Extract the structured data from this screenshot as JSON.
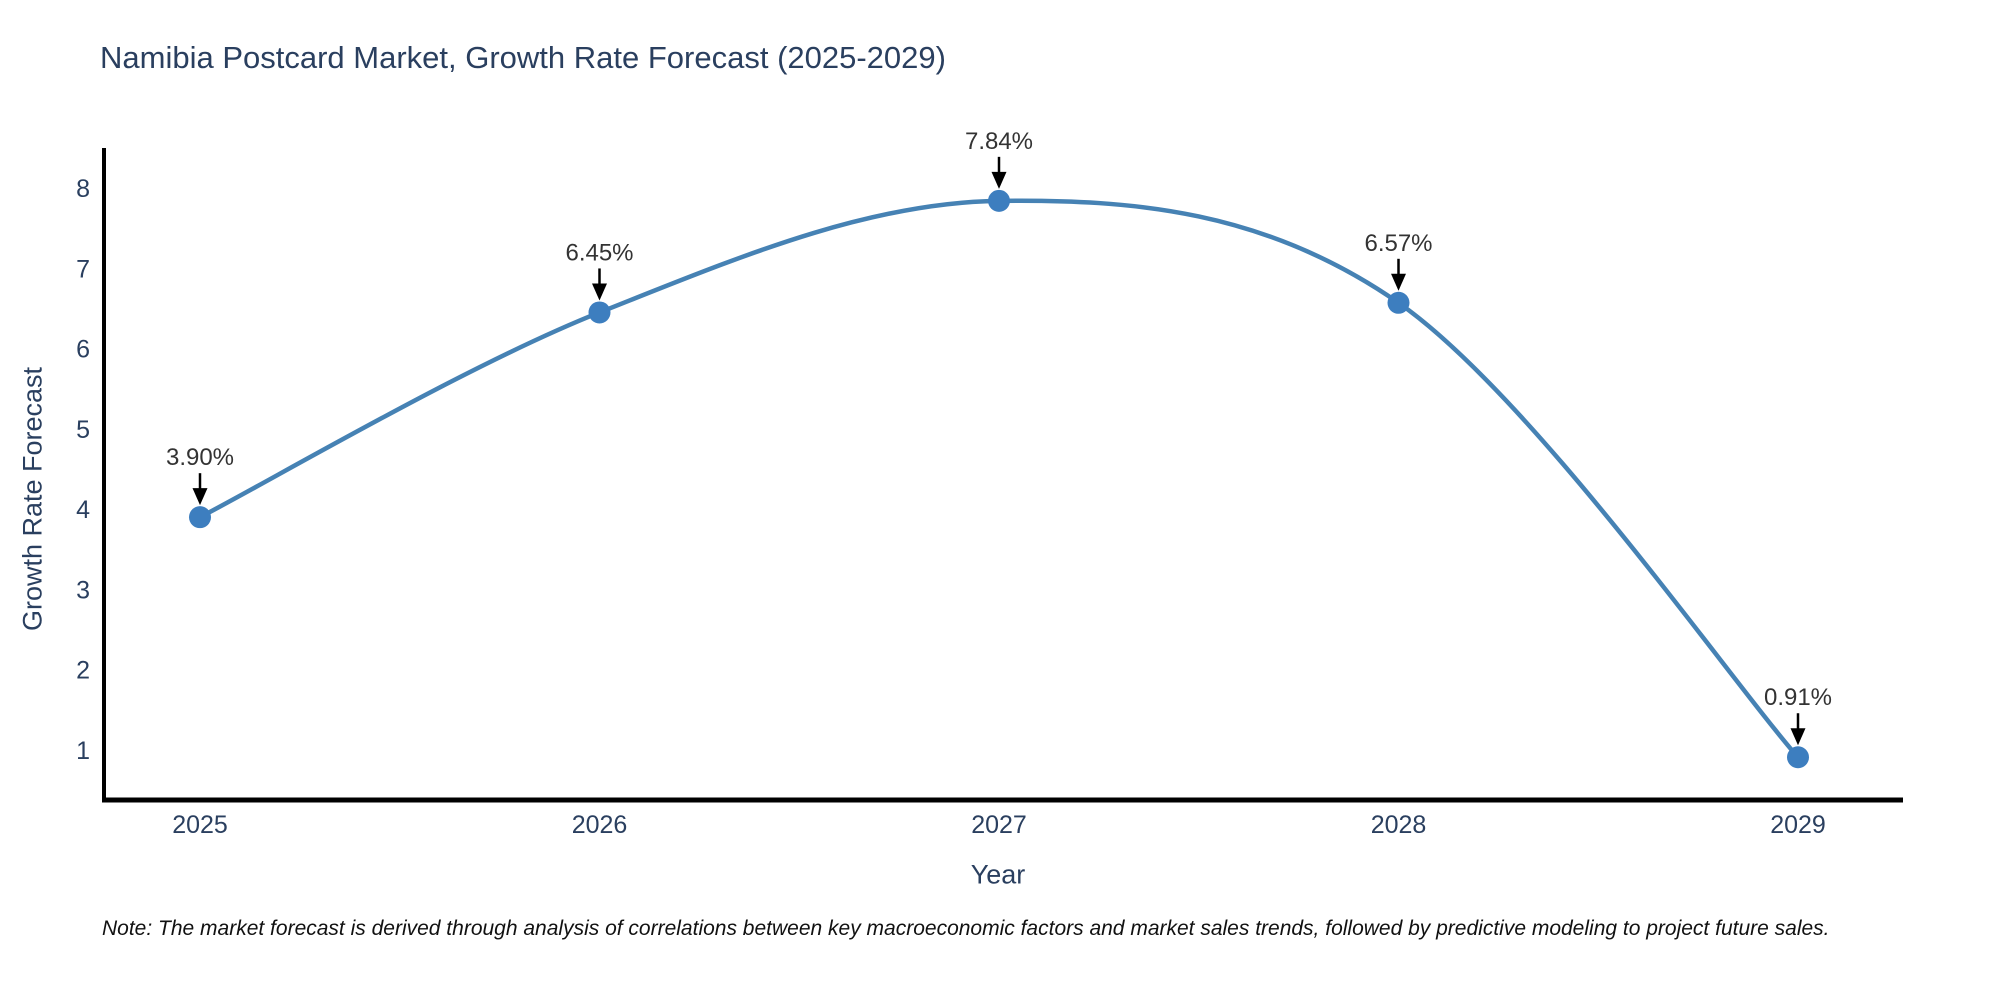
{
  "chart_data": {
    "type": "line",
    "title": "Namibia Postcard Market, Growth Rate Forecast (2025-2029)",
    "xlabel": "Year",
    "ylabel": "Growth Rate Forecast",
    "categories": [
      "2025",
      "2026",
      "2027",
      "2028",
      "2029"
    ],
    "values": [
      3.9,
      6.45,
      7.84,
      6.57,
      0.91
    ],
    "point_labels": [
      "3.90%",
      "6.45%",
      "7.84%",
      "6.57%",
      "0.91%"
    ],
    "yticks": [
      1,
      2,
      3,
      4,
      5,
      6,
      7,
      8
    ],
    "ylim": [
      0.35,
      8.5
    ],
    "grid": false,
    "legend": "none",
    "line_shape": "spline",
    "line_color": "#4682b4",
    "marker_color": "#3d7ebf",
    "axis_color": "#000000",
    "text_color": "#2a3f5f",
    "annotation_color": "#000000",
    "annotation_text_color": "#333333",
    "note": "Note: The market forecast is derived through analysis of correlations between key macroeconomic factors and market sales trends, followed by predictive modeling to project future sales."
  }
}
